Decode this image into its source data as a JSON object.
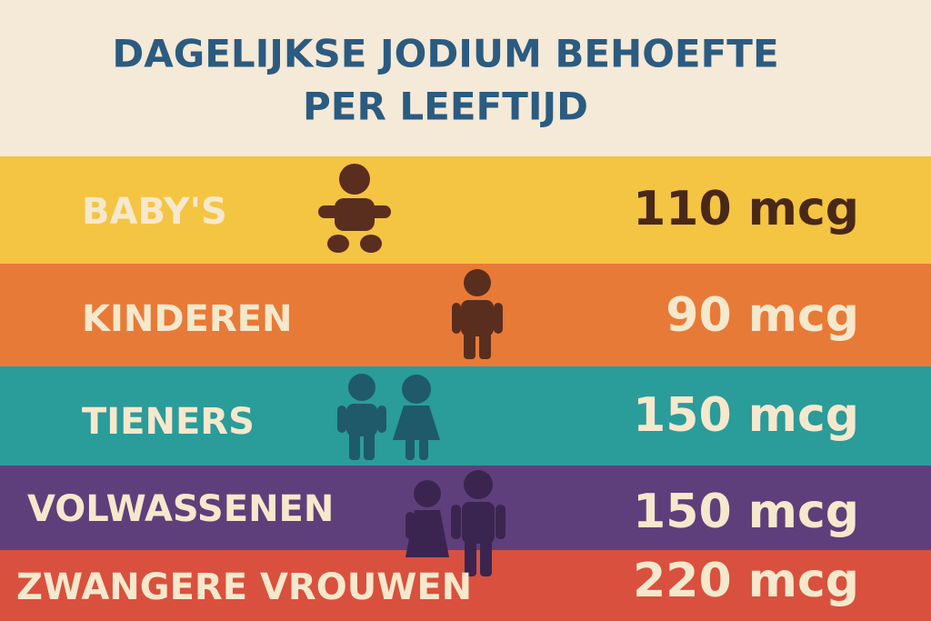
{
  "header": {
    "title_lines": [
      "DAGELIJKSE JODIUM BEHOEFTE",
      "PER LEEFTIJD"
    ]
  },
  "rows": [
    {
      "label": "BABY'S",
      "value": "110 mcg"
    },
    {
      "label": "KINDEREN",
      "value": "90 mcg"
    },
    {
      "label": "TIENERS",
      "value": "150 mcg"
    },
    {
      "label": "VOLWASSENEN",
      "value": "150 mcg"
    },
    {
      "label": "ZWANGERE VROUWEN",
      "value": "220 mcg"
    }
  ]
}
